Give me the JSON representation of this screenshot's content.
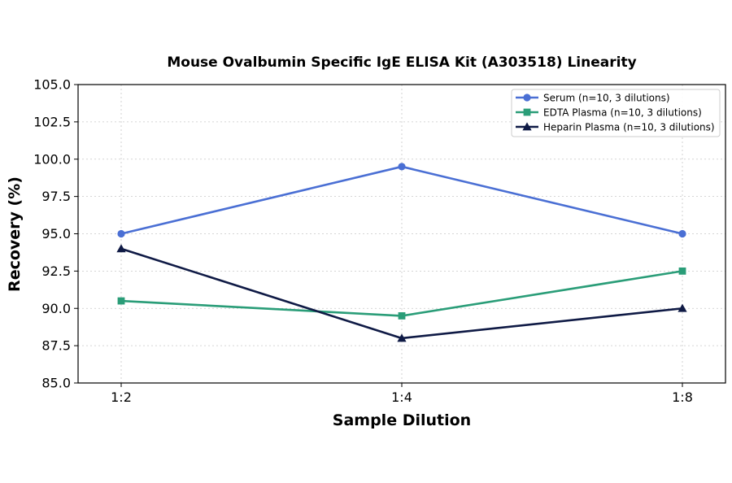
{
  "chart_data": {
    "type": "line",
    "title": "Mouse Ovalbumin Specific IgE ELISA Kit (A303518) Linearity",
    "xlabel": "Sample Dilution",
    "ylabel": "Recovery (%)",
    "categories": [
      "1:2",
      "1:4",
      "1:8"
    ],
    "ylim": [
      85.0,
      105.0
    ],
    "yticks": [
      "85.0",
      "87.5",
      "90.0",
      "92.5",
      "95.0",
      "97.5",
      "100.0",
      "102.5",
      "105.0"
    ],
    "grid": true,
    "legend_position": "top-right",
    "series": [
      {
        "name": "Serum (n=10, 3 dilutions)",
        "values": [
          95.0,
          99.5,
          95.0
        ],
        "color": "#4a6fd4",
        "marker": "circle"
      },
      {
        "name": "EDTA Plasma (n=10, 3 dilutions)",
        "values": [
          90.5,
          89.5,
          92.5
        ],
        "color": "#2a9d78",
        "marker": "square"
      },
      {
        "name": "Heparin Plasma (n=10, 3 dilutions)",
        "values": [
          94.0,
          88.0,
          90.0
        ],
        "color": "#0f1a45",
        "marker": "triangle"
      }
    ]
  }
}
